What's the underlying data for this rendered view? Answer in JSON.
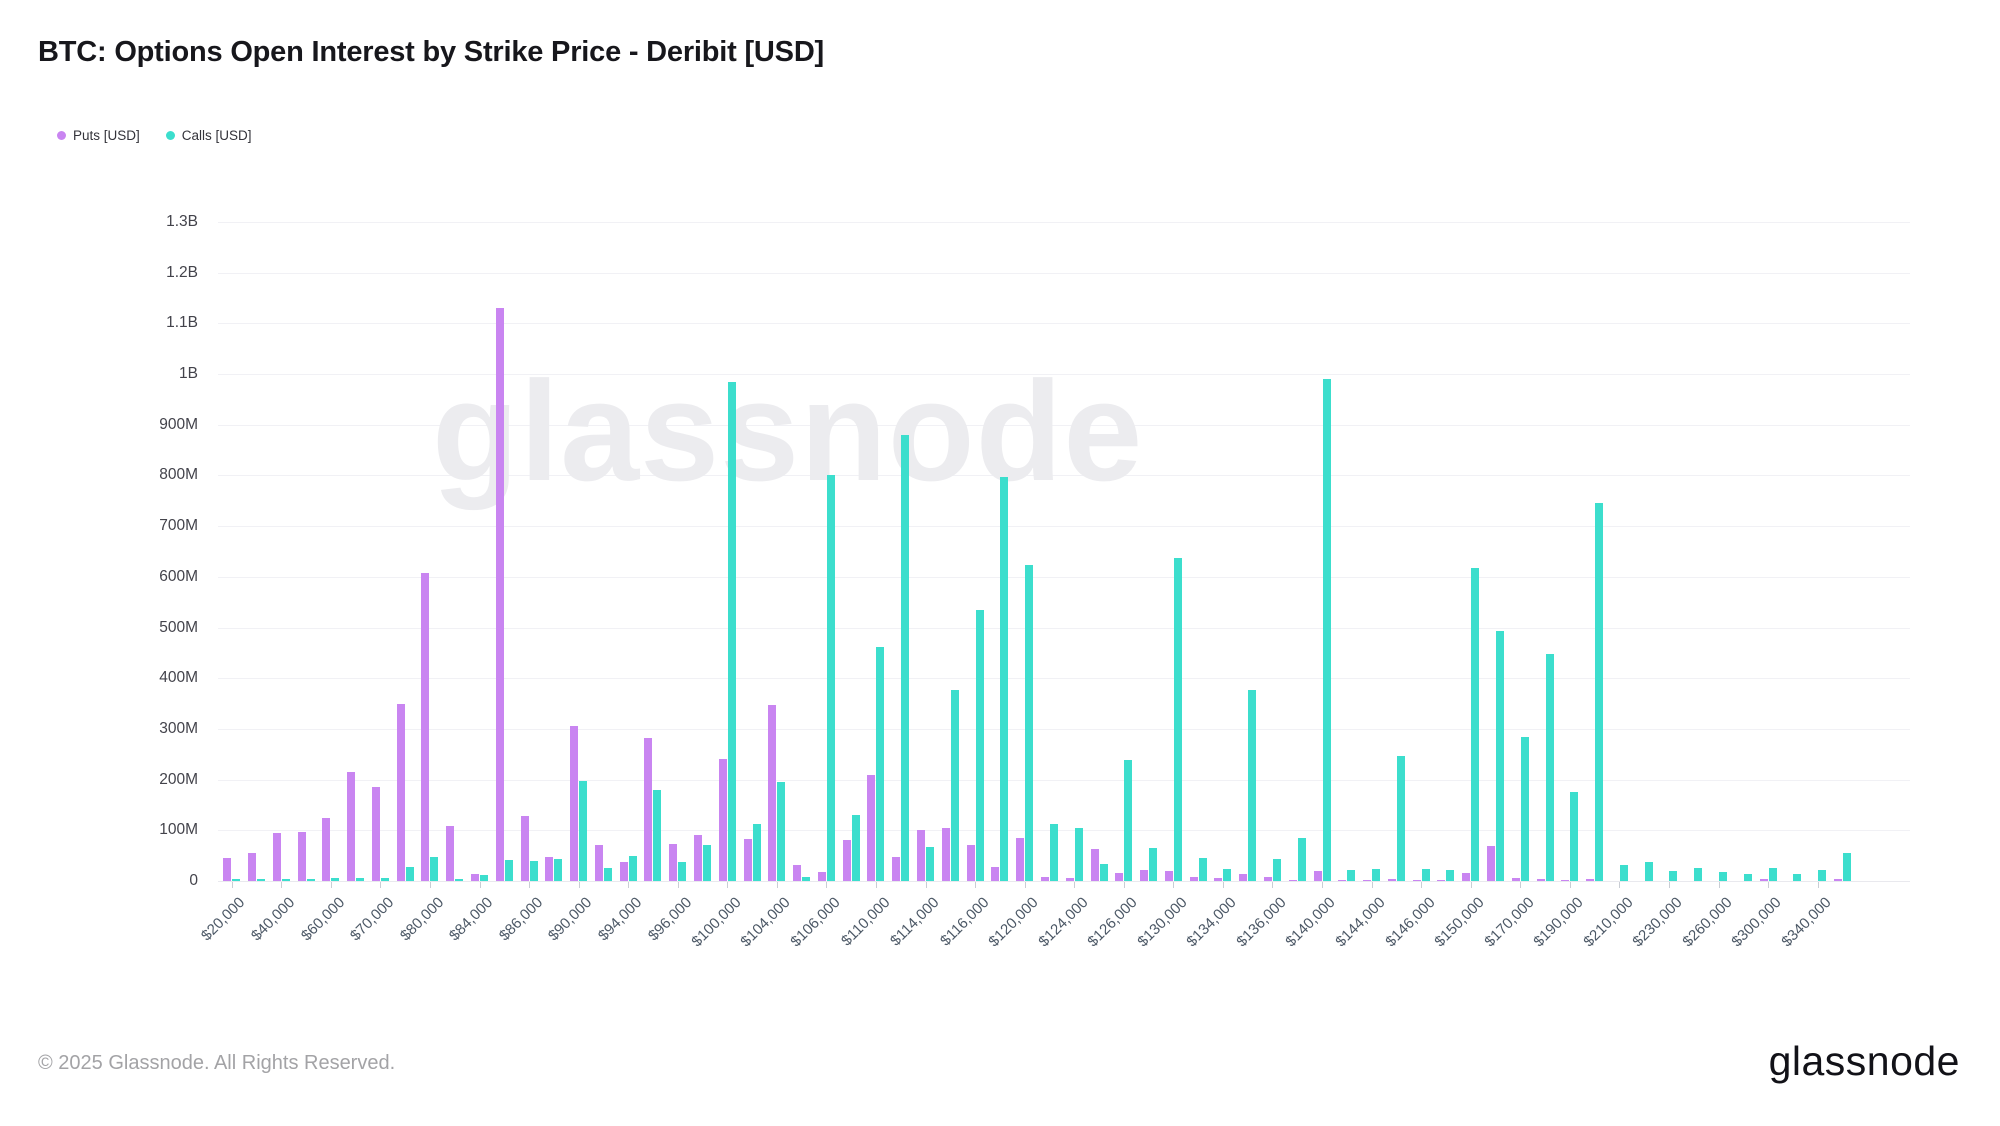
{
  "title": "BTC: Options Open Interest by Strike Price - Deribit [USD]",
  "watermark": "glassnode",
  "footer": {
    "copyright": "© 2025 Glassnode. All Rights Reserved.",
    "brand": "glassnode"
  },
  "chart_data": {
    "type": "bar",
    "title": "BTC: Options Open Interest by Strike Price - Deribit [USD]",
    "grid": true,
    "legend_position": "top-left",
    "values_unit": "USD millions",
    "ylim": [
      0,
      1300
    ],
    "y_tick_labels": [
      "0",
      "100M",
      "200M",
      "300M",
      "400M",
      "500M",
      "600M",
      "700M",
      "800M",
      "900M",
      "1B",
      "1.1B",
      "1.2B",
      "1.3B"
    ],
    "x_label_every_other_category": true,
    "categories": [
      "$20,000",
      "$30,000",
      "$40,000",
      "$50,000",
      "$60,000",
      "$65,000",
      "$70,000",
      "$75,000",
      "$80,000",
      "$82,000",
      "$84,000",
      "$85,000",
      "$86,000",
      "$88,000",
      "$90,000",
      "$92,000",
      "$94,000",
      "$95,000",
      "$96,000",
      "$98,000",
      "$100,000",
      "$102,000",
      "$104,000",
      "$105,000",
      "$106,000",
      "$108,000",
      "$110,000",
      "$112,000",
      "$114,000",
      "$115,000",
      "$116,000",
      "$118,000",
      "$120,000",
      "$122,000",
      "$124,000",
      "$125,000",
      "$126,000",
      "$128,000",
      "$130,000",
      "$132,000",
      "$134,000",
      "$135,000",
      "$136,000",
      "$138,000",
      "$140,000",
      "$142,000",
      "$144,000",
      "$145,000",
      "$146,000",
      "$148,000",
      "$150,000",
      "$160,000",
      "$170,000",
      "$180,000",
      "$190,000",
      "$200,000",
      "$210,000",
      "$220,000",
      "$230,000",
      "$240,000",
      "$260,000",
      "$280,000",
      "$300,000",
      "$320,000",
      "$340,000",
      "$360,000"
    ],
    "shown_tick_labels": [
      "$20,000",
      "$40,000",
      "$60,000",
      "$70,000",
      "$80,000",
      "$84,000",
      "$86,000",
      "$90,000",
      "$94,000",
      "$96,000",
      "$100,000",
      "$104,000",
      "$106,000",
      "$110,000",
      "$114,000",
      "$116,000",
      "$120,000",
      "$124,000",
      "$126,000",
      "$130,000",
      "$134,000",
      "$136,000",
      "$140,000",
      "$144,000",
      "$146,000",
      "$150,000",
      "$170,000",
      "$190,000",
      "$210,000",
      "$230,000",
      "$260,000",
      "$300,000",
      "$340,000"
    ],
    "series": [
      {
        "name": "Puts [USD]",
        "color": "#c985f1",
        "values_millions": [
          45,
          55,
          95,
          96,
          125,
          215,
          185,
          350,
          608,
          108,
          13,
          1130,
          128,
          48,
          305,
          72,
          38,
          283,
          73,
          91,
          240,
          83,
          348,
          32,
          18,
          80,
          210,
          48,
          100,
          105,
          72,
          27,
          84,
          8,
          6,
          64,
          15,
          21,
          19,
          7,
          5,
          14,
          7,
          2,
          20,
          1,
          1,
          4,
          2,
          2,
          16,
          70,
          6,
          4,
          2,
          4,
          0,
          0,
          0,
          0,
          0,
          0,
          3,
          0,
          0,
          3
        ]
      },
      {
        "name": "Calls [USD]",
        "color": "#3cdecd",
        "values_millions": [
          4,
          4,
          4,
          4,
          5,
          5,
          6,
          28,
          48,
          4,
          11,
          42,
          40,
          44,
          197,
          25,
          50,
          180,
          37,
          72,
          985,
          112,
          195,
          8,
          800,
          130,
          462,
          880,
          67,
          377,
          535,
          797,
          623,
          112,
          104,
          33,
          238,
          66,
          637,
          46,
          24,
          377,
          44,
          84,
          990,
          21,
          23,
          247,
          23,
          21,
          617,
          493,
          284,
          447,
          176,
          745,
          32,
          38,
          20,
          26,
          18,
          14,
          26,
          14,
          21,
          56
        ]
      }
    ]
  }
}
